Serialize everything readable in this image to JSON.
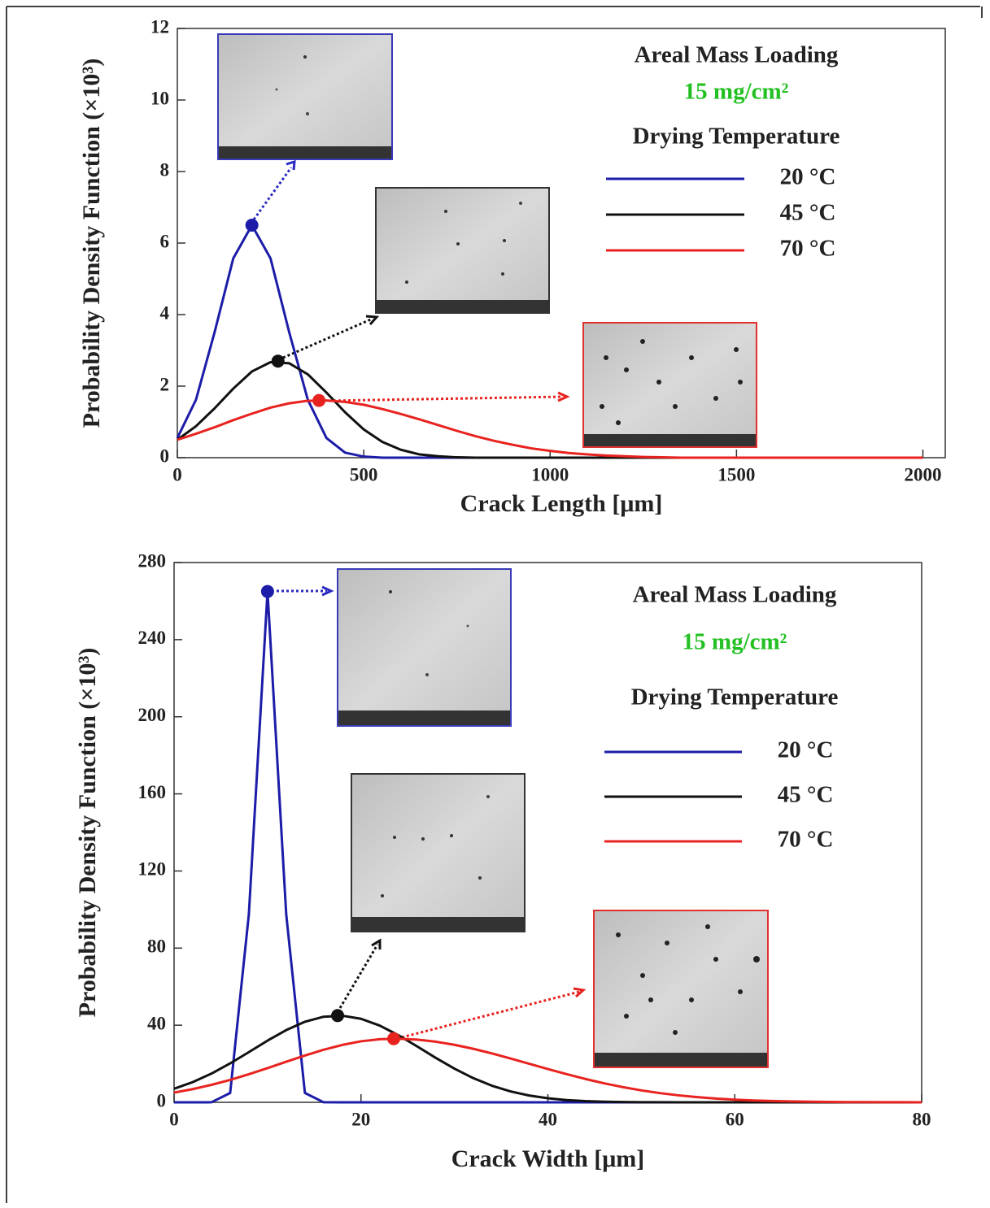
{
  "chart_data": [
    {
      "type": "line",
      "x_label": "Crack Length [μm]",
      "y_label": "Probability Density Function (×10³)",
      "annotations": [
        "Areal Mass Loading",
        "15 mg/cm²"
      ],
      "legend_title": "Drying Temperature",
      "xlim": [
        0,
        2060
      ],
      "ylim": [
        0,
        12
      ],
      "xticks": [
        0,
        500,
        1000,
        1500,
        2000
      ],
      "yticks": [
        0,
        2,
        4,
        6,
        8,
        10,
        12
      ],
      "x": [
        0,
        50,
        100,
        150,
        200,
        250,
        300,
        350,
        400,
        450,
        500,
        550,
        600,
        650,
        700,
        750,
        800,
        850,
        900,
        950,
        1000,
        1050,
        1100,
        1150,
        1200,
        1250,
        1300,
        1350,
        1400,
        1450,
        1500,
        1550,
        1600,
        1650,
        1700,
        1750,
        1800,
        1850,
        1900,
        1950,
        2000
      ],
      "series": [
        {
          "name": "20 °C",
          "color": "#1c1ca8",
          "peak": {
            "x": 200,
            "y": 6.5
          },
          "values": [
            0.55,
            1.62,
            3.51,
            5.57,
            6.5,
            5.57,
            3.51,
            1.62,
            0.55,
            0.14,
            0.03,
            0,
            0,
            0,
            0,
            0,
            0,
            0,
            0,
            0,
            0,
            0,
            0,
            0,
            0,
            0,
            0,
            0,
            0,
            0,
            0,
            0,
            0,
            0,
            0,
            0,
            0,
            0,
            0,
            0,
            0
          ]
        },
        {
          "name": "45 °C",
          "color": "#111111",
          "peak": {
            "x": 270,
            "y": 2.7
          },
          "values": [
            0.5,
            0.88,
            1.38,
            1.93,
            2.41,
            2.67,
            2.64,
            2.33,
            1.82,
            1.27,
            0.79,
            0.44,
            0.22,
            0.09,
            0.04,
            0.01,
            0,
            0,
            0,
            0,
            0,
            0,
            0,
            0,
            0,
            0,
            0,
            0,
            0,
            0,
            0,
            0,
            0,
            0,
            0,
            0,
            0,
            0,
            0,
            0,
            0
          ]
        },
        {
          "name": "70 °C",
          "color": "#e8231f",
          "peak": {
            "x": 380,
            "y": 1.6
          },
          "values": [
            0.5,
            0.67,
            0.85,
            1.05,
            1.23,
            1.4,
            1.52,
            1.59,
            1.6,
            1.56,
            1.48,
            1.36,
            1.22,
            1.07,
            0.91,
            0.75,
            0.6,
            0.47,
            0.36,
            0.26,
            0.19,
            0.13,
            0.09,
            0.06,
            0.04,
            0.02,
            0.01,
            0,
            0,
            0,
            0,
            0,
            0,
            0,
            0,
            0,
            0,
            0,
            0,
            0,
            0
          ]
        }
      ]
    },
    {
      "type": "line",
      "x_label": "Crack Width [μm]",
      "y_label": "Probability Density Function (×10³)",
      "annotations": [
        "Areal Mass Loading",
        "15 mg/cm²"
      ],
      "legend_title": "Drying Temperature",
      "xlim": [
        0,
        80
      ],
      "ylim": [
        0,
        280
      ],
      "xticks": [
        0,
        20,
        40,
        60,
        80
      ],
      "yticks": [
        0,
        40,
        80,
        120,
        160,
        200,
        240,
        280
      ],
      "x": [
        0,
        2,
        4,
        6,
        8,
        10,
        12,
        14,
        16,
        18,
        20,
        22,
        24,
        26,
        28,
        30,
        32,
        34,
        36,
        38,
        40,
        42,
        44,
        46,
        48,
        50,
        52,
        54,
        56,
        58,
        60,
        62,
        64,
        66,
        68,
        70,
        72,
        74,
        76,
        78,
        80
      ],
      "series": [
        {
          "name": "20 °C",
          "color": "#1c1ca8",
          "peak": {
            "x": 10,
            "y": 265
          },
          "values": [
            0,
            0,
            0.03,
            4.85,
            97.5,
            265,
            97.5,
            4.85,
            0.03,
            0,
            0,
            0,
            0,
            0,
            0,
            0,
            0,
            0,
            0,
            0,
            0,
            0,
            0,
            0,
            0,
            0,
            0,
            0,
            0,
            0,
            0,
            0,
            0,
            0,
            0,
            0,
            0,
            0,
            0,
            0,
            0
          ]
        },
        {
          "name": "45 °C",
          "color": "#111111",
          "peak": {
            "x": 17.5,
            "y": 45
          },
          "values": [
            7.04,
            10.49,
            14.91,
            20.19,
            26.04,
            32,
            37.47,
            41.78,
            44.39,
            44.93,
            43.33,
            39.82,
            34.83,
            29.04,
            23.07,
            17.46,
            12.58,
            8.64,
            5.66,
            3.52,
            2.09,
            1.18,
            0.64,
            0.33,
            0.16,
            0.07,
            0.03,
            0,
            0,
            0,
            0,
            0,
            0,
            0,
            0,
            0,
            0,
            0,
            0,
            0,
            0
          ]
        },
        {
          "name": "70 °C",
          "color": "#e8231f",
          "peak": {
            "x": 23.5,
            "y": 33
          },
          "values": [
            5.04,
            6.85,
            9.06,
            11.64,
            14.58,
            17.75,
            21.05,
            24.28,
            27.26,
            29.77,
            31.65,
            32.75,
            32.98,
            32.51,
            31.45,
            29.84,
            27.78,
            25.39,
            22.75,
            20,
            17.26,
            14.61,
            12.13,
            9.89,
            7.9,
            6.19,
            4.77,
            3.61,
            2.67,
            1.94,
            1.38,
            0.97,
            0.66,
            0.45,
            0.3,
            0.19,
            0.12,
            0.08,
            0.05,
            0.03,
            0.02
          ]
        }
      ]
    }
  ]
}
